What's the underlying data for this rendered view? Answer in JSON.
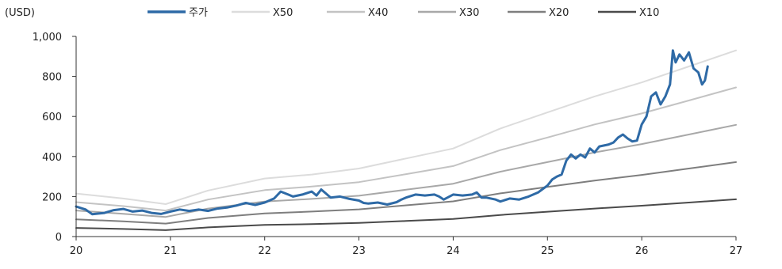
{
  "chart_data": {
    "type": "line",
    "unit_label": "(USD)",
    "xlim": [
      20,
      27
    ],
    "ylim": [
      0,
      1000
    ],
    "x_ticks": [
      "20",
      "21",
      "22",
      "23",
      "24",
      "25",
      "26",
      "27"
    ],
    "y_ticks": [
      "0",
      "200",
      "400",
      "600",
      "800",
      "1,000"
    ],
    "grid": false,
    "legend_position": "top",
    "series": [
      {
        "name": "주가",
        "color": "#2e6aa6",
        "points": [
          [
            20.0,
            150
          ],
          [
            20.1,
            135
          ],
          [
            20.17,
            112
          ],
          [
            20.3,
            118
          ],
          [
            20.4,
            132
          ],
          [
            20.5,
            138
          ],
          [
            20.6,
            125
          ],
          [
            20.7,
            130
          ],
          [
            20.8,
            118
          ],
          [
            20.9,
            113
          ],
          [
            21.0,
            125
          ],
          [
            21.1,
            135
          ],
          [
            21.2,
            128
          ],
          [
            21.3,
            135
          ],
          [
            21.4,
            128
          ],
          [
            21.5,
            140
          ],
          [
            21.6,
            145
          ],
          [
            21.7,
            155
          ],
          [
            21.8,
            168
          ],
          [
            21.9,
            158
          ],
          [
            22.0,
            170
          ],
          [
            22.1,
            190
          ],
          [
            22.17,
            225
          ],
          [
            22.25,
            210
          ],
          [
            22.3,
            200
          ],
          [
            22.4,
            210
          ],
          [
            22.5,
            225
          ],
          [
            22.55,
            205
          ],
          [
            22.6,
            235
          ],
          [
            22.65,
            215
          ],
          [
            22.7,
            195
          ],
          [
            22.8,
            200
          ],
          [
            22.9,
            188
          ],
          [
            23.0,
            180
          ],
          [
            23.05,
            168
          ],
          [
            23.1,
            165
          ],
          [
            23.2,
            170
          ],
          [
            23.3,
            160
          ],
          [
            23.4,
            172
          ],
          [
            23.45,
            185
          ],
          [
            23.5,
            195
          ],
          [
            23.6,
            210
          ],
          [
            23.7,
            205
          ],
          [
            23.8,
            210
          ],
          [
            23.85,
            200
          ],
          [
            23.9,
            185
          ],
          [
            24.0,
            210
          ],
          [
            24.1,
            205
          ],
          [
            24.2,
            210
          ],
          [
            24.25,
            220
          ],
          [
            24.3,
            195
          ],
          [
            24.35,
            195
          ],
          [
            24.45,
            185
          ],
          [
            24.5,
            175
          ],
          [
            24.6,
            190
          ],
          [
            24.7,
            185
          ],
          [
            24.8,
            200
          ],
          [
            24.9,
            220
          ],
          [
            25.0,
            255
          ],
          [
            25.05,
            285
          ],
          [
            25.1,
            300
          ],
          [
            25.15,
            310
          ],
          [
            25.2,
            380
          ],
          [
            25.25,
            410
          ],
          [
            25.3,
            390
          ],
          [
            25.35,
            410
          ],
          [
            25.4,
            395
          ],
          [
            25.45,
            440
          ],
          [
            25.5,
            420
          ],
          [
            25.55,
            450
          ],
          [
            25.6,
            455
          ],
          [
            25.65,
            460
          ],
          [
            25.7,
            470
          ],
          [
            25.75,
            495
          ],
          [
            25.8,
            510
          ],
          [
            25.85,
            490
          ],
          [
            25.9,
            475
          ],
          [
            25.95,
            480
          ],
          [
            26.0,
            560
          ],
          [
            26.05,
            600
          ],
          [
            26.1,
            700
          ],
          [
            26.15,
            720
          ],
          [
            26.2,
            660
          ],
          [
            26.25,
            700
          ],
          [
            26.3,
            760
          ],
          [
            26.33,
            930
          ],
          [
            26.36,
            870
          ],
          [
            26.4,
            910
          ],
          [
            26.45,
            880
          ],
          [
            26.5,
            920
          ],
          [
            26.55,
            840
          ],
          [
            26.6,
            820
          ],
          [
            26.64,
            760
          ],
          [
            26.67,
            780
          ],
          [
            26.7,
            850
          ]
        ]
      },
      {
        "name": "X50",
        "color": "#dcdcdc",
        "points": [
          [
            20.0,
            215
          ],
          [
            20.5,
            190
          ],
          [
            20.95,
            162
          ],
          [
            21.4,
            230
          ],
          [
            22.0,
            290
          ],
          [
            22.5,
            310
          ],
          [
            23.0,
            340
          ],
          [
            23.5,
            390
          ],
          [
            24.0,
            440
          ],
          [
            24.5,
            540
          ],
          [
            25.0,
            620
          ],
          [
            25.5,
            700
          ],
          [
            26.0,
            770
          ],
          [
            26.5,
            850
          ],
          [
            27.0,
            930
          ]
        ]
      },
      {
        "name": "X40",
        "color": "#c3c3c3",
        "points": [
          [
            20.0,
            172
          ],
          [
            20.5,
            152
          ],
          [
            20.95,
            130
          ],
          [
            21.4,
            185
          ],
          [
            22.0,
            232
          ],
          [
            22.5,
            250
          ],
          [
            23.0,
            272
          ],
          [
            23.5,
            312
          ],
          [
            24.0,
            352
          ],
          [
            24.5,
            432
          ],
          [
            25.0,
            495
          ],
          [
            25.5,
            560
          ],
          [
            26.0,
            615
          ],
          [
            26.5,
            680
          ],
          [
            27.0,
            745
          ]
        ]
      },
      {
        "name": "X30",
        "color": "#a8a8a8",
        "points": [
          [
            20.0,
            130
          ],
          [
            20.5,
            114
          ],
          [
            20.95,
            98
          ],
          [
            21.4,
            140
          ],
          [
            22.0,
            175
          ],
          [
            22.5,
            188
          ],
          [
            23.0,
            204
          ],
          [
            23.5,
            234
          ],
          [
            24.0,
            264
          ],
          [
            24.5,
            324
          ],
          [
            25.0,
            372
          ],
          [
            25.5,
            420
          ],
          [
            26.0,
            462
          ],
          [
            26.5,
            510
          ],
          [
            27.0,
            558
          ]
        ]
      },
      {
        "name": "X20",
        "color": "#7e7e7e",
        "points": [
          [
            20.0,
            86
          ],
          [
            20.5,
            76
          ],
          [
            20.95,
            65
          ],
          [
            21.4,
            93
          ],
          [
            22.0,
            116
          ],
          [
            22.5,
            125
          ],
          [
            23.0,
            136
          ],
          [
            23.5,
            156
          ],
          [
            24.0,
            176
          ],
          [
            24.5,
            216
          ],
          [
            25.0,
            248
          ],
          [
            25.5,
            280
          ],
          [
            26.0,
            308
          ],
          [
            26.5,
            340
          ],
          [
            27.0,
            372
          ]
        ]
      },
      {
        "name": "X10",
        "color": "#4a4a4a",
        "points": [
          [
            20.0,
            43
          ],
          [
            20.5,
            38
          ],
          [
            20.95,
            32
          ],
          [
            21.4,
            46
          ],
          [
            22.0,
            58
          ],
          [
            22.5,
            62
          ],
          [
            23.0,
            68
          ],
          [
            23.5,
            78
          ],
          [
            24.0,
            88
          ],
          [
            24.5,
            108
          ],
          [
            25.0,
            124
          ],
          [
            25.5,
            140
          ],
          [
            26.0,
            154
          ],
          [
            26.5,
            170
          ],
          [
            27.0,
            186
          ]
        ]
      }
    ]
  }
}
